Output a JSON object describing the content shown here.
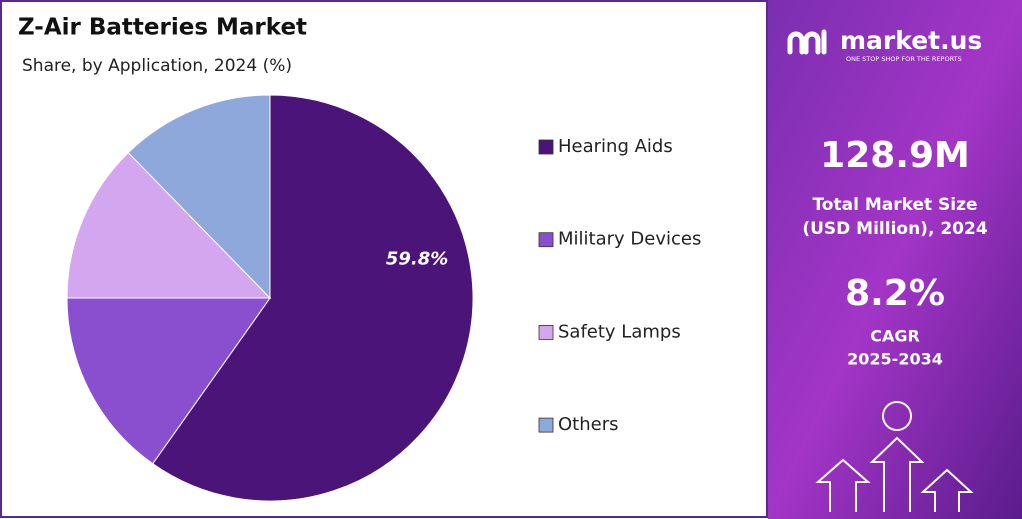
{
  "chart_data": {
    "type": "pie",
    "title": "Z-Air Batteries Market",
    "subtitle": "Share, by Application, 2024 (%)",
    "categories": [
      "Hearing Aids",
      "Military Devices",
      "Safety Lamps",
      "Others"
    ],
    "values": [
      59.8,
      15.2,
      12.7,
      12.3
    ],
    "value_labels": [
      "59.8%",
      null,
      null,
      null
    ],
    "colors": [
      "#4b1478",
      "#8a4fcf",
      "#d4a6f0",
      "#8fa8dc"
    ],
    "legend": "right"
  },
  "panel": {
    "brand": "market.us",
    "tagline": "ONE STOP SHOP FOR THE REPORTS",
    "market_size": "128.9M",
    "market_size_label": [
      "Total Market Size",
      "(USD Million), 2024"
    ],
    "cagr": "8.2%",
    "cagr_label": [
      "CAGR",
      "2025-2034"
    ]
  }
}
